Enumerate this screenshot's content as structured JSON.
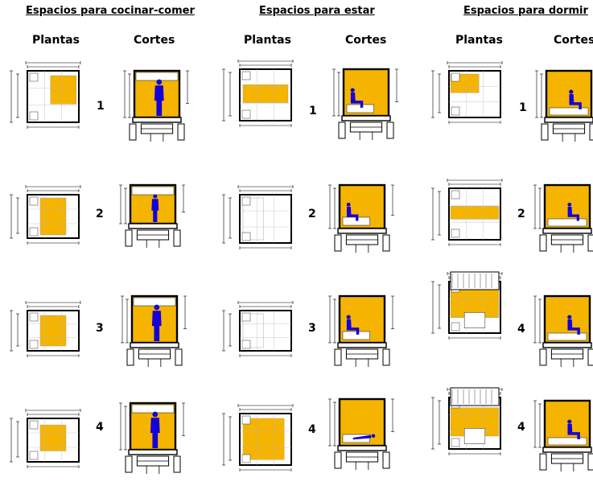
{
  "sections": [
    {
      "title": "Espacios para cocinar-comer",
      "plantas": "Plantas",
      "cortes": "Cortes"
    },
    {
      "title": "Espacios para estar",
      "plantas": "Plantas",
      "cortes": "Cortes"
    },
    {
      "title": "Espacios para dormir",
      "plantas": "Plantas",
      "cortes": "Cortes"
    }
  ],
  "rows": {
    "s1": [
      "1",
      "2",
      "3",
      "4"
    ],
    "s2": [
      "1",
      "2",
      "3",
      "4"
    ],
    "s3": [
      "1",
      "2",
      "4",
      "4"
    ]
  },
  "colors": {
    "fill": "#f5b400",
    "figure": "#1400d8",
    "line": "#000000"
  }
}
